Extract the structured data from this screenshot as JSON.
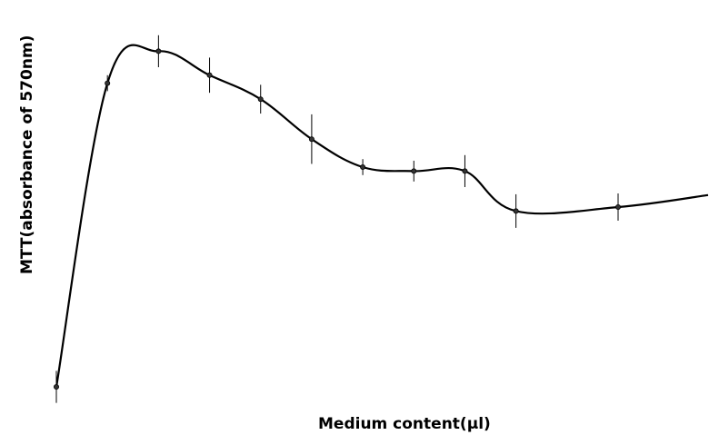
{
  "chart_data": {
    "type": "line",
    "title": "",
    "xlabel": "Medium content(µl)",
    "ylabel": "MTT(absorbance of 570nm)",
    "grid": false,
    "legend": "none",
    "line_color": "#000000",
    "series": [
      {
        "name": "",
        "x": [
          1,
          2,
          3,
          4,
          5,
          6,
          7,
          8,
          9,
          10,
          12
        ],
        "y": [
          0.1,
          0.86,
          0.94,
          0.88,
          0.82,
          0.72,
          0.65,
          0.64,
          0.64,
          0.54,
          0.55
        ],
        "error": [
          0.04,
          0.02,
          0.04,
          0.044,
          0.036,
          0.062,
          0.02,
          0.026,
          0.04,
          0.042,
          0.034
        ]
      }
    ],
    "trend_tail": {
      "x": 14,
      "y": 0.58
    }
  }
}
